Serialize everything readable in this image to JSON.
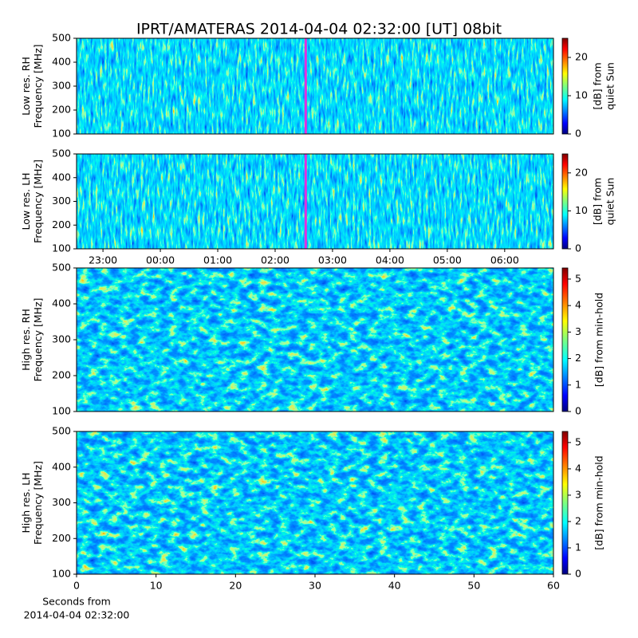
{
  "title": "IPRT/AMATERAS 2014-04-04 02:32:00 [UT]   08bit",
  "chart_data": [
    {
      "type": "spectrogram",
      "ylabel": [
        "Low res. RH",
        "Frequency [MHz]"
      ],
      "xlim": [
        22.54,
        30.85
      ],
      "ylim": [
        100,
        500
      ],
      "yticks": [
        100,
        200,
        300,
        400,
        500
      ],
      "marker": 26.533,
      "marker_color": "#e030e0",
      "colorbar": {
        "label": [
          "[dB] from",
          "quiet Sun"
        ],
        "lim": [
          0,
          25
        ],
        "ticks": [
          0,
          10,
          20
        ]
      }
    },
    {
      "type": "spectrogram",
      "ylabel": [
        "Low res. LH",
        "Frequency [MHz]"
      ],
      "xlim": [
        22.54,
        30.85
      ],
      "ylim": [
        100,
        500
      ],
      "yticks": [
        100,
        200,
        300,
        400,
        500
      ],
      "xticks": [
        {
          "value": 23,
          "label": "23:00"
        },
        {
          "value": 24,
          "label": "00:00"
        },
        {
          "value": 25,
          "label": "01:00"
        },
        {
          "value": 26,
          "label": "02:00"
        },
        {
          "value": 27,
          "label": "03:00"
        },
        {
          "value": 28,
          "label": "04:00"
        },
        {
          "value": 29,
          "label": "05:00"
        },
        {
          "value": 30,
          "label": "06:00"
        }
      ],
      "marker": 26.533,
      "marker_color": "#e030e0",
      "colorbar": {
        "label": [
          "[dB] from",
          "quiet Sun"
        ],
        "lim": [
          0,
          25
        ],
        "ticks": [
          0,
          10,
          20
        ]
      }
    },
    {
      "type": "spectrogram",
      "ylabel": [
        "High res. RH",
        "Frequency [MHz]"
      ],
      "xlim": [
        0,
        60
      ],
      "ylim": [
        100,
        500
      ],
      "yticks": [
        100,
        200,
        300,
        400,
        500
      ],
      "colorbar": {
        "label": [
          "[dB] from min-hold"
        ],
        "lim": [
          0,
          5.42
        ],
        "ticks": [
          0,
          1,
          2,
          3,
          4,
          5
        ]
      }
    },
    {
      "type": "spectrogram",
      "ylabel": [
        "High res. LH",
        "Frequency [MHz]"
      ],
      "xlim": [
        0,
        60
      ],
      "ylim": [
        100,
        500
      ],
      "yticks": [
        100,
        200,
        300,
        400,
        500
      ],
      "xticks": [
        0,
        10,
        20,
        30,
        40,
        50,
        60
      ],
      "xlabel": [
        "Seconds from",
        "2014-04-04 02:32:00"
      ],
      "colorbar": {
        "label": [
          "[dB] from min-hold"
        ],
        "lim": [
          0,
          5.42
        ],
        "ticks": [
          0,
          1,
          2,
          3,
          4,
          5
        ]
      }
    }
  ]
}
